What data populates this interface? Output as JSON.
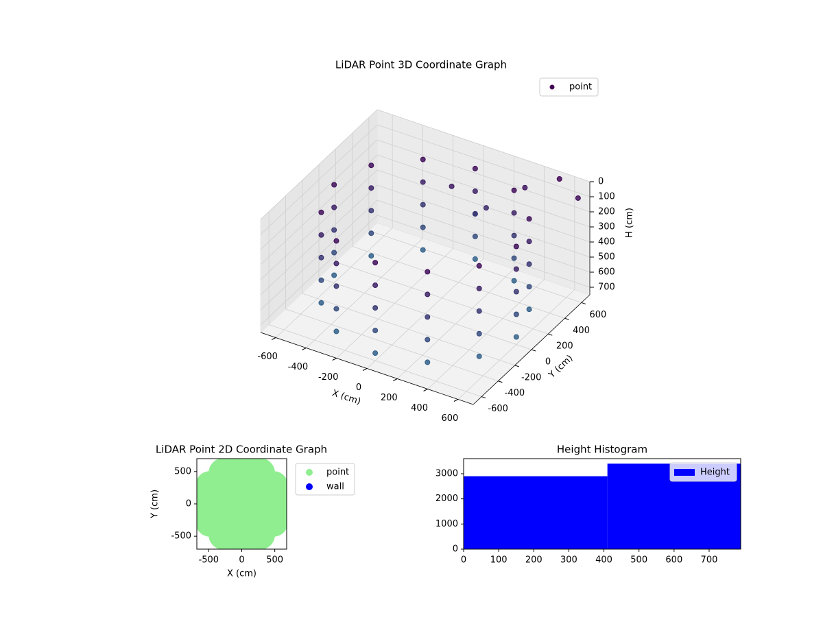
{
  "chart_data": [
    {
      "type": "scatter3d",
      "title": "LiDAR Point 3D Coordinate Graph",
      "xlabel": "X (cm)",
      "ylabel": "Y (cm)",
      "zlabel": "H (cm)",
      "xlim": [
        -700,
        700
      ],
      "ylim": [
        -700,
        700
      ],
      "zlim": [
        750,
        0
      ],
      "xticks": [
        -600,
        -400,
        -200,
        0,
        200,
        400,
        600
      ],
      "yticks": [
        -600,
        -400,
        -200,
        0,
        200,
        400,
        600
      ],
      "zticks": [
        0,
        100,
        200,
        300,
        400,
        500,
        600,
        700
      ],
      "grid": true,
      "legend": "upper right",
      "series": [
        {
          "name": "point",
          "color": "#440154",
          "x": [
            600,
            520,
            300,
            0,
            -300,
            -520,
            -600,
            -520,
            -300,
            0,
            300,
            520,
            600,
            520,
            300,
            0,
            -300,
            -520,
            -600,
            -520,
            -300,
            0,
            300,
            520,
            600,
            520,
            300,
            0,
            -300,
            -520,
            -600,
            -520,
            -300,
            0,
            300,
            520,
            600,
            520,
            300,
            0,
            -300,
            -520,
            -600,
            -520,
            -300,
            0,
            300,
            520,
            600,
            520,
            300,
            0,
            -300,
            -520,
            -600,
            -520,
            -300,
            0,
            300,
            520,
            650,
            500,
            300,
            -100,
            100,
            0
          ],
          "y": [
            0,
            300,
            520,
            600,
            520,
            300,
            0,
            -300,
            -520,
            -600,
            -520,
            -300,
            0,
            300,
            520,
            600,
            520,
            300,
            0,
            -300,
            -520,
            -600,
            -520,
            -300,
            0,
            300,
            520,
            600,
            520,
            300,
            0,
            -300,
            -520,
            -600,
            -520,
            -300,
            0,
            300,
            520,
            600,
            520,
            300,
            0,
            -300,
            -520,
            -600,
            -520,
            -300,
            0,
            300,
            520,
            600,
            520,
            300,
            0,
            -300,
            -520,
            -600,
            -520,
            -300,
            650,
            700,
            650,
            500,
            550,
            600
          ],
          "z": [
            100,
            100,
            100,
            100,
            100,
            100,
            100,
            100,
            100,
            100,
            100,
            100,
            250,
            250,
            250,
            250,
            250,
            250,
            250,
            250,
            250,
            250,
            250,
            250,
            400,
            400,
            400,
            400,
            400,
            400,
            400,
            400,
            400,
            400,
            400,
            400,
            550,
            550,
            550,
            550,
            550,
            550,
            550,
            550,
            550,
            550,
            550,
            550,
            700,
            700,
            700,
            700,
            700,
            700,
            700,
            700,
            700,
            700,
            700,
            700,
            100,
            50,
            150,
            200,
            300,
            400
          ]
        }
      ]
    },
    {
      "type": "scatter",
      "title": "LiDAR Point 2D Coordinate Graph",
      "xlabel": "X (cm)",
      "ylabel": "Y (cm)",
      "xlim": [
        -680,
        680
      ],
      "ylim": [
        -700,
        700
      ],
      "xticks": [
        -500,
        0,
        500
      ],
      "yticks": [
        -500,
        0,
        500
      ],
      "legend": "upper right",
      "series": [
        {
          "name": "point",
          "color": "#90ee90",
          "x": [
            550,
            476,
            275,
            0,
            -275,
            -476,
            -550,
            -476,
            -275,
            0,
            275,
            476,
            300,
            212,
            0,
            -212,
            -300,
            -212,
            0,
            212,
            0,
            150,
            0,
            -150,
            0,
            297,
            -297,
            -297,
            297
          ],
          "y": [
            0,
            275,
            476,
            550,
            476,
            275,
            0,
            -275,
            -476,
            -550,
            -476,
            -275,
            0,
            212,
            300,
            212,
            0,
            -212,
            -300,
            -212,
            0,
            0,
            150,
            0,
            -150,
            297,
            297,
            -297,
            -297
          ]
        },
        {
          "name": "wall",
          "color": "#0000ff",
          "x": [],
          "y": []
        }
      ]
    },
    {
      "type": "histogram",
      "title": "Height Histogram",
      "bins": [
        0,
        410,
        790
      ],
      "counts": [
        2900,
        3400
      ],
      "xlim": [
        0,
        790
      ],
      "ylim": [
        0,
        3600
      ],
      "xticks": [
        0,
        100,
        200,
        300,
        400,
        500,
        600,
        700
      ],
      "yticks": [
        0,
        1000,
        2000,
        3000
      ],
      "legend": "upper right",
      "series_name": "Height",
      "color": "#0000ff"
    }
  ]
}
